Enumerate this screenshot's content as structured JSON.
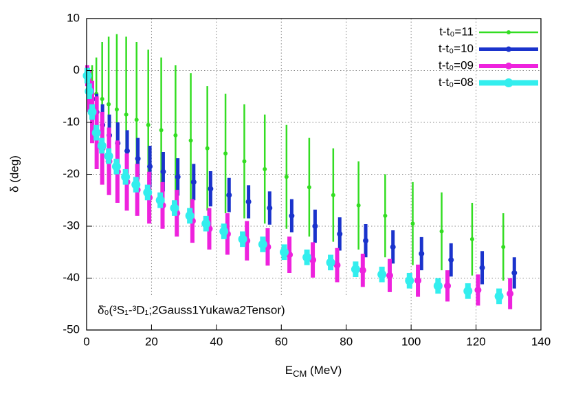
{
  "chart_data": {
    "type": "scatter",
    "xlabel": [
      "E",
      "CM",
      " (MeV)"
    ],
    "ylabel": "δ (deg)",
    "annotation": "δ̄₀(³S₁-³D₁;2Gauss1Yukawa2Tensor)",
    "xlim": [
      0,
      140
    ],
    "xticks": [
      0,
      20,
      40,
      60,
      80,
      100,
      120,
      140
    ],
    "ylim": [
      -50,
      10
    ],
    "yticks": [
      -50,
      -40,
      -30,
      -20,
      -10,
      0,
      10
    ],
    "grid": true,
    "legend": "upper-right",
    "series": [
      {
        "name": "t-t₀=11",
        "color": "#33dd22",
        "x": [
          0.2,
          0.8,
          1.7,
          3.0,
          4.8,
          6.8,
          9.3,
          12.2,
          15.4,
          19.0,
          23.0,
          27.4,
          32.1,
          37.2,
          42.8,
          48.6,
          54.9,
          61.6,
          68.6,
          76.0,
          83.8,
          92.0,
          100.5,
          109.4,
          118.8,
          128.4
        ],
        "values": [
          -0.5,
          -1.5,
          -3,
          -4.5,
          -5.5,
          -6.5,
          -7.5,
          -8.5,
          -9.5,
          -10.5,
          -11.5,
          -12.5,
          -13.5,
          -15,
          -16,
          -17.5,
          -19,
          -20.5,
          -22.5,
          -24,
          -26,
          -28,
          -29.5,
          -31,
          -32.5,
          -34
        ],
        "errors": [
          1,
          2,
          4,
          7,
          11,
          13,
          14.5,
          15,
          15,
          14.5,
          14,
          13.5,
          13,
          12,
          11.5,
          11,
          10.5,
          10,
          9.5,
          9,
          8.5,
          8,
          8,
          7.5,
          7,
          6.5
        ]
      },
      {
        "name": "t-t₀=10",
        "color": "#1a33cc",
        "x": [
          0.2,
          0.8,
          1.8,
          3.1,
          4.9,
          7.0,
          9.6,
          12.5,
          15.8,
          19.5,
          23.6,
          28.1,
          33.0,
          38.2,
          43.9,
          49.9,
          56.4,
          63.2,
          70.4,
          78.0,
          86.0,
          94.4,
          103.2,
          112.3,
          121.9,
          131.8
        ],
        "values": [
          -1,
          -3,
          -5.5,
          -8,
          -10.5,
          -12.5,
          -14,
          -15.5,
          -17,
          -18.5,
          -19.5,
          -20.5,
          -21.5,
          -22.8,
          -24,
          -25.3,
          -26.5,
          -28,
          -30,
          -31.5,
          -32.8,
          -34,
          -35.3,
          -36.5,
          -38,
          -39
        ],
        "errors": [
          1,
          2,
          3,
          3.5,
          4,
          4,
          4,
          4,
          4,
          4,
          3.8,
          3.6,
          3.5,
          3.4,
          3.3,
          3.2,
          3.2,
          3.2,
          3.2,
          3.2,
          3.2,
          3.2,
          3.2,
          3.2,
          3.2,
          3
        ]
      },
      {
        "name": "t-t₀=09",
        "color": "#ee22dd",
        "x": [
          0.2,
          0.8,
          1.7,
          3.1,
          4.8,
          6.9,
          9.5,
          12.4,
          15.6,
          19.3,
          23.4,
          27.8,
          32.6,
          37.8,
          43.4,
          49.4,
          55.8,
          62.5,
          69.7,
          77.2,
          85.1,
          93.4,
          102.1,
          111.2,
          120.6,
          130.5
        ],
        "values": [
          -1,
          -4,
          -8,
          -12,
          -15,
          -17.5,
          -19.5,
          -21.5,
          -23,
          -24.5,
          -26,
          -27.5,
          -29,
          -30.5,
          -31.5,
          -32.8,
          -34,
          -35.5,
          -36.5,
          -37.5,
          -38.5,
          -39.5,
          -40.5,
          -41.5,
          -42.3,
          -43
        ],
        "errors": [
          2,
          4,
          6,
          7,
          7,
          6.5,
          6,
          5.5,
          5,
          5,
          4.5,
          4.5,
          4.2,
          4,
          4,
          3.8,
          3.6,
          3.5,
          3.4,
          3.3,
          3.2,
          3.2,
          3.1,
          3,
          3,
          3
        ]
      },
      {
        "name": "t-t₀=08",
        "color": "#33eeee",
        "x": [
          0.2,
          0.8,
          1.7,
          3.0,
          4.7,
          6.8,
          9.2,
          12.0,
          15.2,
          18.8,
          22.7,
          27.1,
          31.8,
          36.8,
          42.3,
          48.1,
          54.3,
          60.9,
          67.9,
          75.2,
          82.9,
          91.0,
          99.5,
          108.3,
          117.5,
          127.1
        ],
        "values": [
          -1,
          -4,
          -8,
          -12,
          -14.5,
          -16.5,
          -18.5,
          -20.5,
          -22,
          -23.5,
          -25,
          -26.5,
          -28,
          -29.5,
          -31,
          -32.5,
          -33.5,
          -35,
          -36,
          -37,
          -38.3,
          -39.3,
          -40.5,
          -41.5,
          -42.5,
          -43.5
        ],
        "errors": [
          1.5,
          1.5,
          1.5,
          1.5,
          1.5,
          1.5,
          1.5,
          1.5,
          1.5,
          1.5,
          1.5,
          1.5,
          1.5,
          1.5,
          1.5,
          1.5,
          1.5,
          1.5,
          1.5,
          1.5,
          1.5,
          1.5,
          1.5,
          1.5,
          1.5,
          1.5
        ]
      }
    ]
  }
}
